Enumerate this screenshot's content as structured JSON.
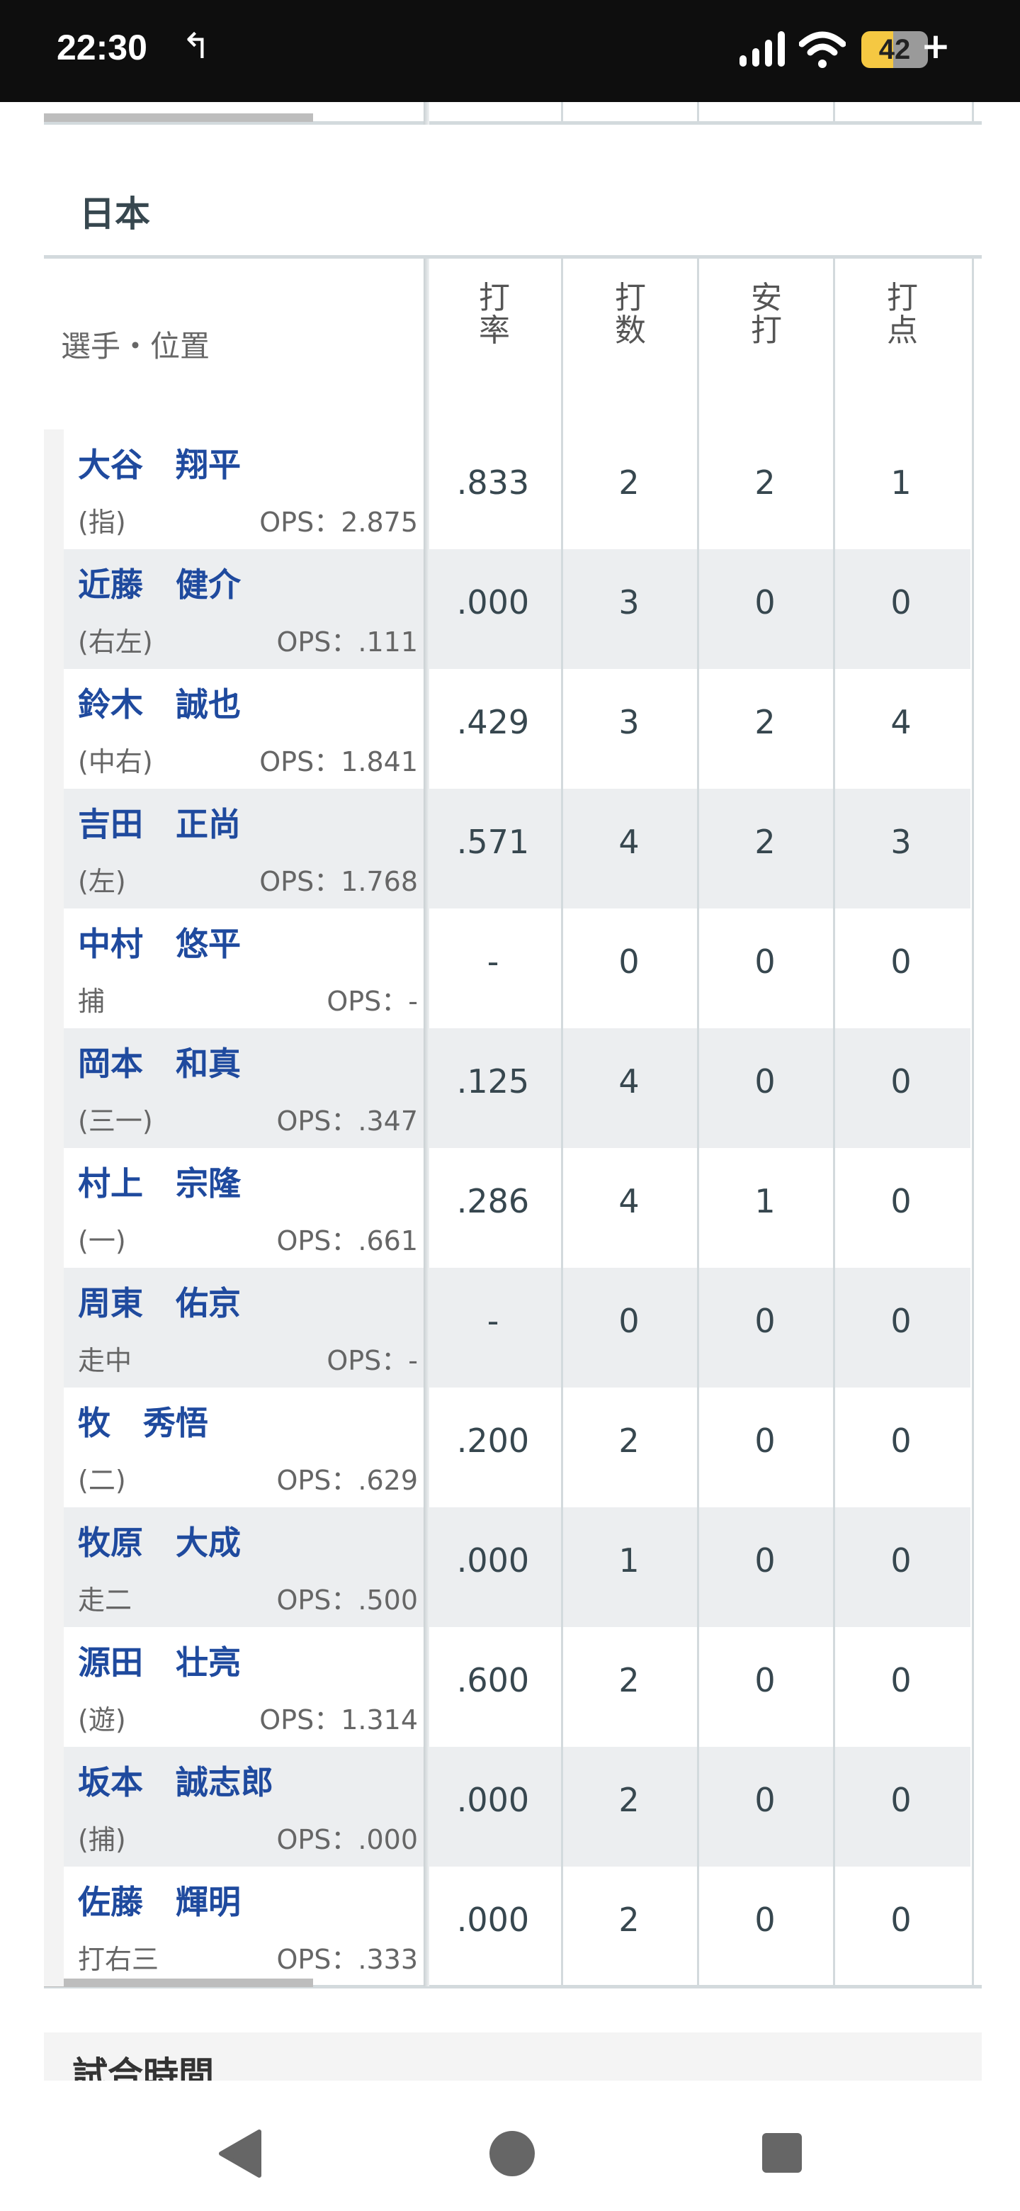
{
  "status_bar": {
    "time": "22:30",
    "battery": "42",
    "battery_plus": "+"
  },
  "team": "日本",
  "table": {
    "header_player": "選手・位置",
    "columns": [
      "打率",
      "打数",
      "安打",
      "打点"
    ],
    "rows": [
      {
        "name": "大谷　翔平",
        "pos": "(指)",
        "ops": "OPS：2.875",
        "vals": [
          ".833",
          "2",
          "2",
          "1"
        ]
      },
      {
        "name": "近藤　健介",
        "pos": "(右左)",
        "ops": "OPS：.111",
        "vals": [
          ".000",
          "3",
          "0",
          "0"
        ]
      },
      {
        "name": "鈴木　誠也",
        "pos": "(中右)",
        "ops": "OPS：1.841",
        "vals": [
          ".429",
          "3",
          "2",
          "4"
        ]
      },
      {
        "name": "吉田　正尚",
        "pos": "(左)",
        "ops": "OPS：1.768",
        "vals": [
          ".571",
          "4",
          "2",
          "3"
        ]
      },
      {
        "name": "中村　悠平",
        "pos": "捕",
        "ops": "OPS：-",
        "vals": [
          "-",
          "0",
          "0",
          "0"
        ]
      },
      {
        "name": "岡本　和真",
        "pos": "(三一)",
        "ops": "OPS：.347",
        "vals": [
          ".125",
          "4",
          "0",
          "0"
        ]
      },
      {
        "name": "村上　宗隆",
        "pos": "(一)",
        "ops": "OPS：.661",
        "vals": [
          ".286",
          "4",
          "1",
          "0"
        ]
      },
      {
        "name": "周東　佑京",
        "pos": "走中",
        "ops": "OPS：-",
        "vals": [
          "-",
          "0",
          "0",
          "0"
        ]
      },
      {
        "name": "牧　秀悟",
        "pos": "(二)",
        "ops": "OPS：.629",
        "vals": [
          ".200",
          "2",
          "0",
          "0"
        ]
      },
      {
        "name": "牧原　大成",
        "pos": "走二",
        "ops": "OPS：.500",
        "vals": [
          ".000",
          "1",
          "0",
          "0"
        ]
      },
      {
        "name": "源田　壮亮",
        "pos": "(遊)",
        "ops": "OPS：1.314",
        "vals": [
          ".600",
          "2",
          "0",
          "0"
        ]
      },
      {
        "name": "坂本　誠志郎",
        "pos": "(捕)",
        "ops": "OPS：.000",
        "vals": [
          ".000",
          "2",
          "0",
          "0"
        ]
      },
      {
        "name": "佐藤　輝明",
        "pos": "打右三",
        "ops": "OPS：.333",
        "vals": [
          ".000",
          "2",
          "0",
          "0"
        ]
      }
    ]
  },
  "game_time_title": "試合時間",
  "colors": {
    "name_link": "#1f4a9e",
    "alt_row": "#eceef0",
    "heading": "#37474f"
  }
}
